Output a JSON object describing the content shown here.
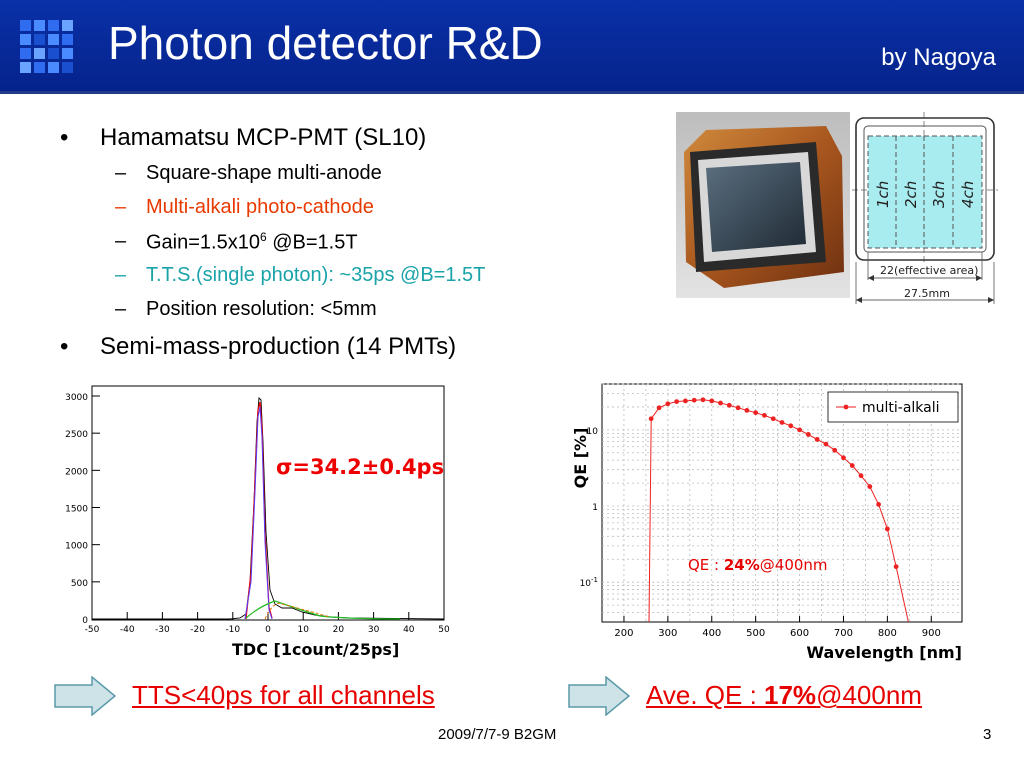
{
  "header": {
    "title": "Photon detector R&D",
    "subtitle": "by Nagoya"
  },
  "bullets": [
    {
      "text": "Hamamatsu MCP-PMT (SL10)",
      "color": "#000000",
      "sub": [
        {
          "text": "Square-shape multi-anode",
          "color": "#000000"
        },
        {
          "text": "Multi-alkali photo-cathode",
          "color": "#e83a00"
        },
        {
          "text_pre": "Gain=1.5x10",
          "sup": "6",
          "text_post": " @B=1.5T",
          "color": "#000000"
        },
        {
          "text": "T.T.S.(single photon): ~35ps  @B=1.5T",
          "color": "#1aa3a8"
        },
        {
          "text": "Position resolution: <5mm",
          "color": "#000000"
        }
      ]
    },
    {
      "text": "Semi-mass-production (14 PMTs)",
      "color": "#000000"
    }
  ],
  "pmt_diagram": {
    "channels": [
      "1ch",
      "2ch",
      "3ch",
      "4ch"
    ],
    "effective_area_label": "22(effective area)",
    "size_label": "27.5mm"
  },
  "histogram": {
    "y_ticks": [
      "3000",
      "2500",
      "2000",
      "1500",
      "1000",
      "500",
      "0"
    ],
    "x_ticks": [
      "-50",
      "-40",
      "-30",
      "-20",
      "-10",
      "0",
      "10",
      "20",
      "30",
      "40",
      "50"
    ],
    "xlabel": "TDC [1count/25ps]",
    "annotation": "σ=34.2±0.4ps"
  },
  "chart_data": {
    "type": "scatter",
    "title": "",
    "xlabel": "Wavelength [nm]",
    "ylabel": "QE [%]",
    "x_ticks": [
      "200",
      "300",
      "400",
      "500",
      "600",
      "700",
      "800",
      "900"
    ],
    "y_ticks": [
      "10",
      "1",
      "10-1"
    ],
    "xlim": [
      150,
      970
    ],
    "ylim": [
      0.03,
      40
    ],
    "yscale": "log",
    "legend": "top-right",
    "series": [
      {
        "name": "multi-alkali",
        "color": "#ee2222",
        "x": [
          262,
          280,
          300,
          320,
          340,
          360,
          380,
          400,
          420,
          440,
          460,
          480,
          500,
          520,
          540,
          560,
          580,
          600,
          620,
          640,
          660,
          680,
          700,
          720,
          740,
          760,
          780,
          800,
          820
        ],
        "y": [
          14,
          19.5,
          22,
          23.5,
          24,
          24.5,
          24.8,
          24,
          22.5,
          21,
          19.5,
          18,
          16.8,
          15.5,
          14,
          12.5,
          11.3,
          10,
          8.7,
          7.5,
          6.5,
          5.4,
          4.3,
          3.4,
          2.5,
          1.8,
          1.05,
          0.5,
          0.16
        ]
      }
    ],
    "annotation_pre": "QE : ",
    "annotation_bold": "24%",
    "annotation_post": "@400nm"
  },
  "bottom": {
    "left_text": "TTS<40ps for all channels",
    "right_pre": "Ave. QE : ",
    "right_bold": "17%",
    "right_post": "@400nm"
  },
  "footer": {
    "date": "2009/7/7-9 B2GM",
    "page": "3"
  }
}
